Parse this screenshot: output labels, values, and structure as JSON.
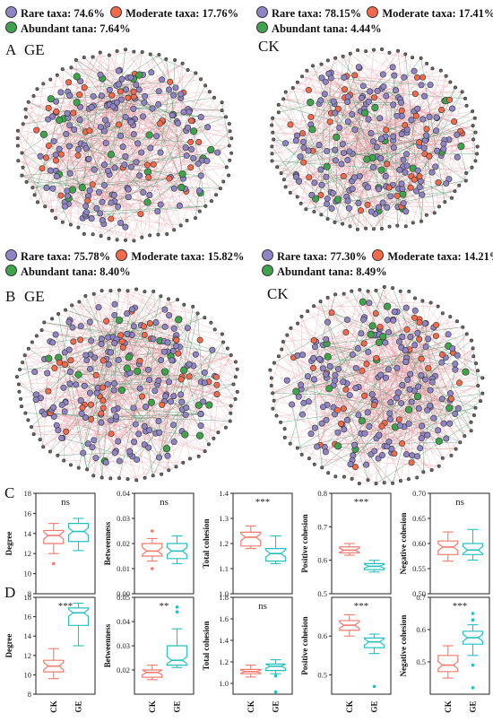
{
  "colors": {
    "rare": "#8f85c5",
    "moderate": "#f06a4b",
    "abundant": "#3fa34d",
    "ck": "#f07a6e",
    "ge": "#27c0c0",
    "edge_pos": "#e8909a",
    "edge_neg": "#2e8b57"
  },
  "networks": [
    {
      "id": "A-GE",
      "letter": "A",
      "label": "GE",
      "rare": "Rare taxa: 74.6%",
      "moderate": "Moderate taxa: 17.76%",
      "abundant": "Abundant tana: 7.64%"
    },
    {
      "id": "A-CK",
      "letter": "",
      "label": "CK",
      "rare": "Rare taxa: 78.15%",
      "moderate": "Moderate taxa: 17.41%",
      "abundant": "Abundant tana: 4.44%"
    },
    {
      "id": "B-GE",
      "letter": "B",
      "label": "GE",
      "rare": "Rare taxa: 75.78%",
      "moderate": "Moderate taxa: 15.82%",
      "abundant": "Abundant tana: 8.40%"
    },
    {
      "id": "B-CK",
      "letter": "",
      "label": "CK",
      "rare": "Rare taxa: 77.30%",
      "moderate": "Moderate taxa: 14.21%",
      "abundant": "Abundant tana: 8.49%"
    }
  ],
  "panel_letters": {
    "C": "C",
    "D": "D"
  },
  "chart_data": [
    {
      "type": "box",
      "panel": "C",
      "ylabel": "Degree",
      "ylim": [
        8,
        18
      ],
      "yticks": [
        "8",
        "10",
        "12",
        "14",
        "16",
        "18"
      ],
      "significance": "ns",
      "categories": [
        "CK",
        "GE"
      ],
      "boxes": [
        {
          "q1": 13.0,
          "median": 13.8,
          "q3": 14.3,
          "min": 12.0,
          "max": 15.0,
          "outliers": [
            11.0
          ]
        },
        {
          "q1": 13.2,
          "median": 14.2,
          "q3": 15.0,
          "min": 12.3,
          "max": 15.5,
          "outliers": []
        }
      ]
    },
    {
      "type": "box",
      "panel": "C",
      "ylabel": "Betweenness",
      "ylim": [
        0.0,
        0.04
      ],
      "yticks": [
        "0.00",
        "0.01",
        "0.02",
        "0.03",
        "0.04"
      ],
      "significance": "ns",
      "categories": [
        "CK",
        "GE"
      ],
      "boxes": [
        {
          "q1": 0.015,
          "median": 0.017,
          "q3": 0.02,
          "min": 0.013,
          "max": 0.022,
          "outliers": [
            0.025,
            0.01
          ]
        },
        {
          "q1": 0.014,
          "median": 0.017,
          "q3": 0.02,
          "min": 0.012,
          "max": 0.023,
          "outliers": []
        }
      ]
    },
    {
      "type": "box",
      "panel": "C",
      "ylabel": "Total cohesion",
      "ylim": [
        1.0,
        1.4
      ],
      "yticks": [
        "1.0",
        "1.1",
        "1.2",
        "1.3",
        "1.4"
      ],
      "significance": "***",
      "categories": [
        "CK",
        "GE"
      ],
      "boxes": [
        {
          "q1": 1.19,
          "median": 1.225,
          "q3": 1.245,
          "min": 1.18,
          "max": 1.27,
          "outliers": []
        },
        {
          "q1": 1.13,
          "median": 1.16,
          "q3": 1.18,
          "min": 1.12,
          "max": 1.23,
          "outliers": []
        }
      ]
    },
    {
      "type": "box",
      "panel": "C",
      "ylabel": "Positive cohesion",
      "ylim": [
        0.5,
        0.8
      ],
      "yticks": [
        "0.5",
        "0.6",
        "0.7",
        "0.8"
      ],
      "significance": "***",
      "categories": [
        "CK",
        "GE"
      ],
      "boxes": [
        {
          "q1": 0.622,
          "median": 0.63,
          "q3": 0.64,
          "min": 0.615,
          "max": 0.65,
          "outliers": []
        },
        {
          "q1": 0.572,
          "median": 0.582,
          "q3": 0.59,
          "min": 0.565,
          "max": 0.6,
          "outliers": []
        }
      ]
    },
    {
      "type": "box",
      "panel": "C",
      "ylabel": "Negative cohesion",
      "ylim": [
        0.5,
        0.7
      ],
      "yticks": [
        "0.50",
        "0.55",
        "0.60",
        "0.65",
        "0.70"
      ],
      "significance": "ns",
      "categories": [
        "CK",
        "GE"
      ],
      "boxes": [
        {
          "q1": 0.578,
          "median": 0.593,
          "q3": 0.605,
          "min": 0.565,
          "max": 0.623,
          "outliers": []
        },
        {
          "q1": 0.578,
          "median": 0.587,
          "q3": 0.6,
          "min": 0.567,
          "max": 0.628,
          "outliers": []
        }
      ]
    },
    {
      "type": "box",
      "panel": "D",
      "ylabel": "Degree",
      "ylim": [
        8,
        18
      ],
      "yticks": [
        "8",
        "10",
        "12",
        "14",
        "16",
        "18"
      ],
      "significance": "***",
      "categories": [
        "CK",
        "GE"
      ],
      "boxes": [
        {
          "q1": 10.3,
          "median": 10.9,
          "q3": 11.5,
          "min": 9.6,
          "max": 12.7,
          "outliers": []
        },
        {
          "q1": 15.1,
          "median": 16.4,
          "q3": 16.9,
          "min": 13.0,
          "max": 17.4,
          "outliers": []
        }
      ]
    },
    {
      "type": "box",
      "panel": "D",
      "ylabel": "Betweenness",
      "ylim": [
        0.01,
        0.05
      ],
      "yticks": [
        "0.02",
        "0.03",
        "0.04",
        "0.05"
      ],
      "significance": "**",
      "categories": [
        "CK",
        "GE"
      ],
      "boxes": [
        {
          "q1": 0.017,
          "median": 0.019,
          "q3": 0.02,
          "min": 0.016,
          "max": 0.022,
          "outliers": []
        },
        {
          "q1": 0.022,
          "median": 0.024,
          "q3": 0.03,
          "min": 0.021,
          "max": 0.037,
          "outliers": [
            0.046,
            0.044
          ]
        }
      ]
    },
    {
      "type": "box",
      "panel": "D",
      "ylabel": "Total cohesion",
      "ylim": [
        0.9,
        1.8
      ],
      "yticks": [
        "1.0",
        "1.2",
        "1.4",
        "1.6",
        "1.8"
      ],
      "significance": "ns",
      "categories": [
        "CK",
        "GE"
      ],
      "boxes": [
        {
          "q1": 1.09,
          "median": 1.11,
          "q3": 1.13,
          "min": 1.06,
          "max": 1.17,
          "outliers": []
        },
        {
          "q1": 1.12,
          "median": 1.16,
          "q3": 1.18,
          "min": 1.09,
          "max": 1.22,
          "outliers": [
            1.07,
            0.92
          ]
        }
      ]
    },
    {
      "type": "box",
      "panel": "D",
      "ylabel": "Positive cohesion",
      "ylim": [
        0.45,
        0.7
      ],
      "yticks": [
        "0.5",
        "0.6"
      ],
      "significance": "***",
      "categories": [
        "CK",
        "GE"
      ],
      "boxes": [
        {
          "q1": 0.615,
          "median": 0.628,
          "q3": 0.64,
          "min": 0.6,
          "max": 0.655,
          "outliers": []
        },
        {
          "q1": 0.57,
          "median": 0.585,
          "q3": 0.595,
          "min": 0.555,
          "max": 0.605,
          "outliers": [
            0.47
          ]
        }
      ]
    },
    {
      "type": "box",
      "panel": "D",
      "ylabel": "Negative cohesion",
      "ylim": [
        0.4,
        0.7
      ],
      "yticks": [
        "0.5",
        "0.6",
        "0.7"
      ],
      "significance": "***",
      "categories": [
        "CK",
        "GE"
      ],
      "boxes": [
        {
          "q1": 0.47,
          "median": 0.49,
          "q3": 0.52,
          "min": 0.45,
          "max": 0.55,
          "outliers": []
        },
        {
          "q1": 0.555,
          "median": 0.575,
          "q3": 0.595,
          "min": 0.52,
          "max": 0.615,
          "outliers": [
            0.65,
            0.63,
            0.49,
            0.42
          ]
        }
      ]
    }
  ]
}
